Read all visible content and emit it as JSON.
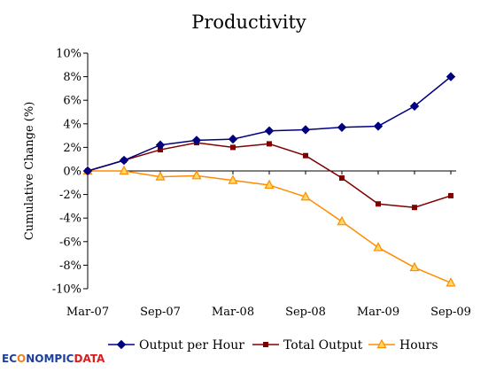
{
  "chart_data": {
    "type": "line",
    "title": "Productivity",
    "ylabel": "Cumulative Change (%)",
    "xlabel": "",
    "ylim": [
      -10,
      10
    ],
    "y_ticks": [
      "10%",
      "8%",
      "6%",
      "4%",
      "2%",
      "0%",
      "-2%",
      "-4%",
      "-6%",
      "-8%",
      "-10%"
    ],
    "x": [
      "Mar-07",
      "Jun-07",
      "Sep-07",
      "Dec-07",
      "Mar-08",
      "Jun-08",
      "Sep-08",
      "Dec-08",
      "Mar-09",
      "Jun-09",
      "Sep-09"
    ],
    "x_tick_labels": [
      "Mar-07",
      "Sep-07",
      "Mar-08",
      "Sep-08",
      "Mar-09",
      "Sep-09"
    ],
    "grid": false,
    "legend_position": "bottom",
    "series": [
      {
        "name": "Output per Hour",
        "color": "#000080",
        "marker": "diamond",
        "values": [
          0.0,
          0.9,
          2.2,
          2.6,
          2.7,
          3.4,
          3.5,
          3.7,
          3.8,
          5.5,
          8.0
        ]
      },
      {
        "name": "Total Output",
        "color": "#800000",
        "marker": "square",
        "values": [
          0.0,
          0.9,
          1.8,
          2.4,
          2.0,
          2.3,
          1.3,
          -0.6,
          -2.8,
          -3.1,
          -2.1
        ]
      },
      {
        "name": "Hours",
        "color": "#ff8c00",
        "marker": "triangle",
        "values": [
          0.0,
          0.0,
          -0.5,
          -0.4,
          -0.8,
          -1.2,
          -2.2,
          -4.3,
          -6.5,
          -8.2,
          -9.5
        ]
      }
    ]
  },
  "watermark": {
    "part1": "EC",
    "part2": "O",
    "part3": "NOMPIC",
    "part4": "DATA"
  }
}
